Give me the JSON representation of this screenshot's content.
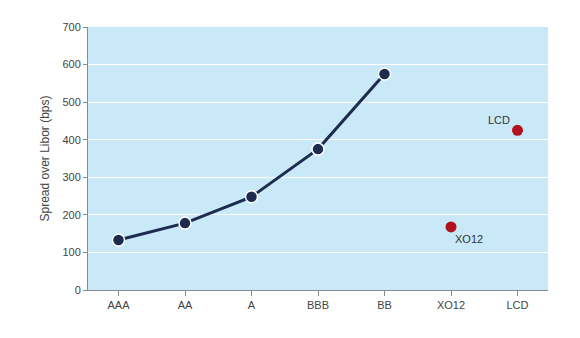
{
  "chart_data": {
    "type": "line",
    "y_label": "Spread over Libor (bps)",
    "categories": [
      "AAA",
      "AA",
      "A",
      "BBB",
      "BB",
      "XO12",
      "LCD"
    ],
    "series": [
      {
        "type": "line",
        "marker": "circle",
        "color": "#1c2b4f",
        "values": [
          133,
          178,
          248,
          375,
          575,
          null,
          null
        ]
      },
      {
        "type": "scatter",
        "marker": "circle",
        "color": "#b3121c",
        "values": [
          null,
          null,
          null,
          null,
          null,
          168,
          425
        ]
      }
    ],
    "annotations": [
      {
        "text": "XO12",
        "x": "XO12"
      },
      {
        "text": "LCD",
        "x": "LCD"
      }
    ],
    "ylim": [
      0,
      700
    ],
    "yticks": [
      0,
      100,
      200,
      300,
      400,
      500,
      600,
      700
    ],
    "grid": true
  }
}
